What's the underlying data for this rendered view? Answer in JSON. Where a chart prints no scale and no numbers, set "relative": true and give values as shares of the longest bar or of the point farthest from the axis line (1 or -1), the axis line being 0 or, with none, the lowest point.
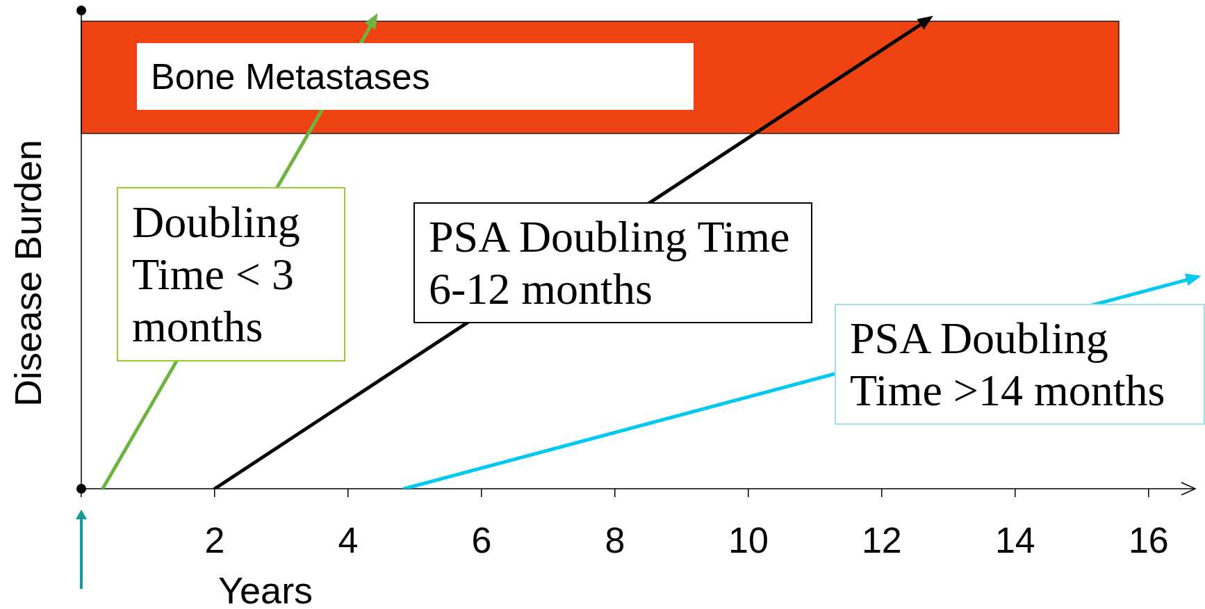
{
  "chart_data": {
    "type": "line",
    "xlabel": "Years",
    "ylabel": "Disease Burden",
    "relative": true,
    "xlim": [
      0,
      16.7
    ],
    "xticks": [
      {
        "value": 0,
        "label": null
      },
      2,
      4,
      6,
      8,
      10,
      12,
      14,
      16
    ],
    "grid": false,
    "legend": false,
    "line_style": "solid",
    "bands": [
      {
        "axis": "y",
        "from": 0.76,
        "to": 1,
        "label": "Bone Metastases",
        "color": "#f04314"
      }
    ],
    "series": [
      {
        "name": "Doubling Time < 3 months",
        "color": "#6db33f",
        "x": [
          0.32,
          4.38
        ],
        "values": [
          0,
          1
        ]
      },
      {
        "name": "PSA Doubling Time 6-12 months",
        "color": "#000000",
        "x": [
          2,
          12.66
        ],
        "values": [
          0,
          1
        ]
      },
      {
        "name": "PSA Doubling Time >14 months",
        "color": "#00c8f0",
        "x": [
          4.84,
          16.66
        ],
        "values": [
          0,
          0.45
        ]
      }
    ]
  }
}
